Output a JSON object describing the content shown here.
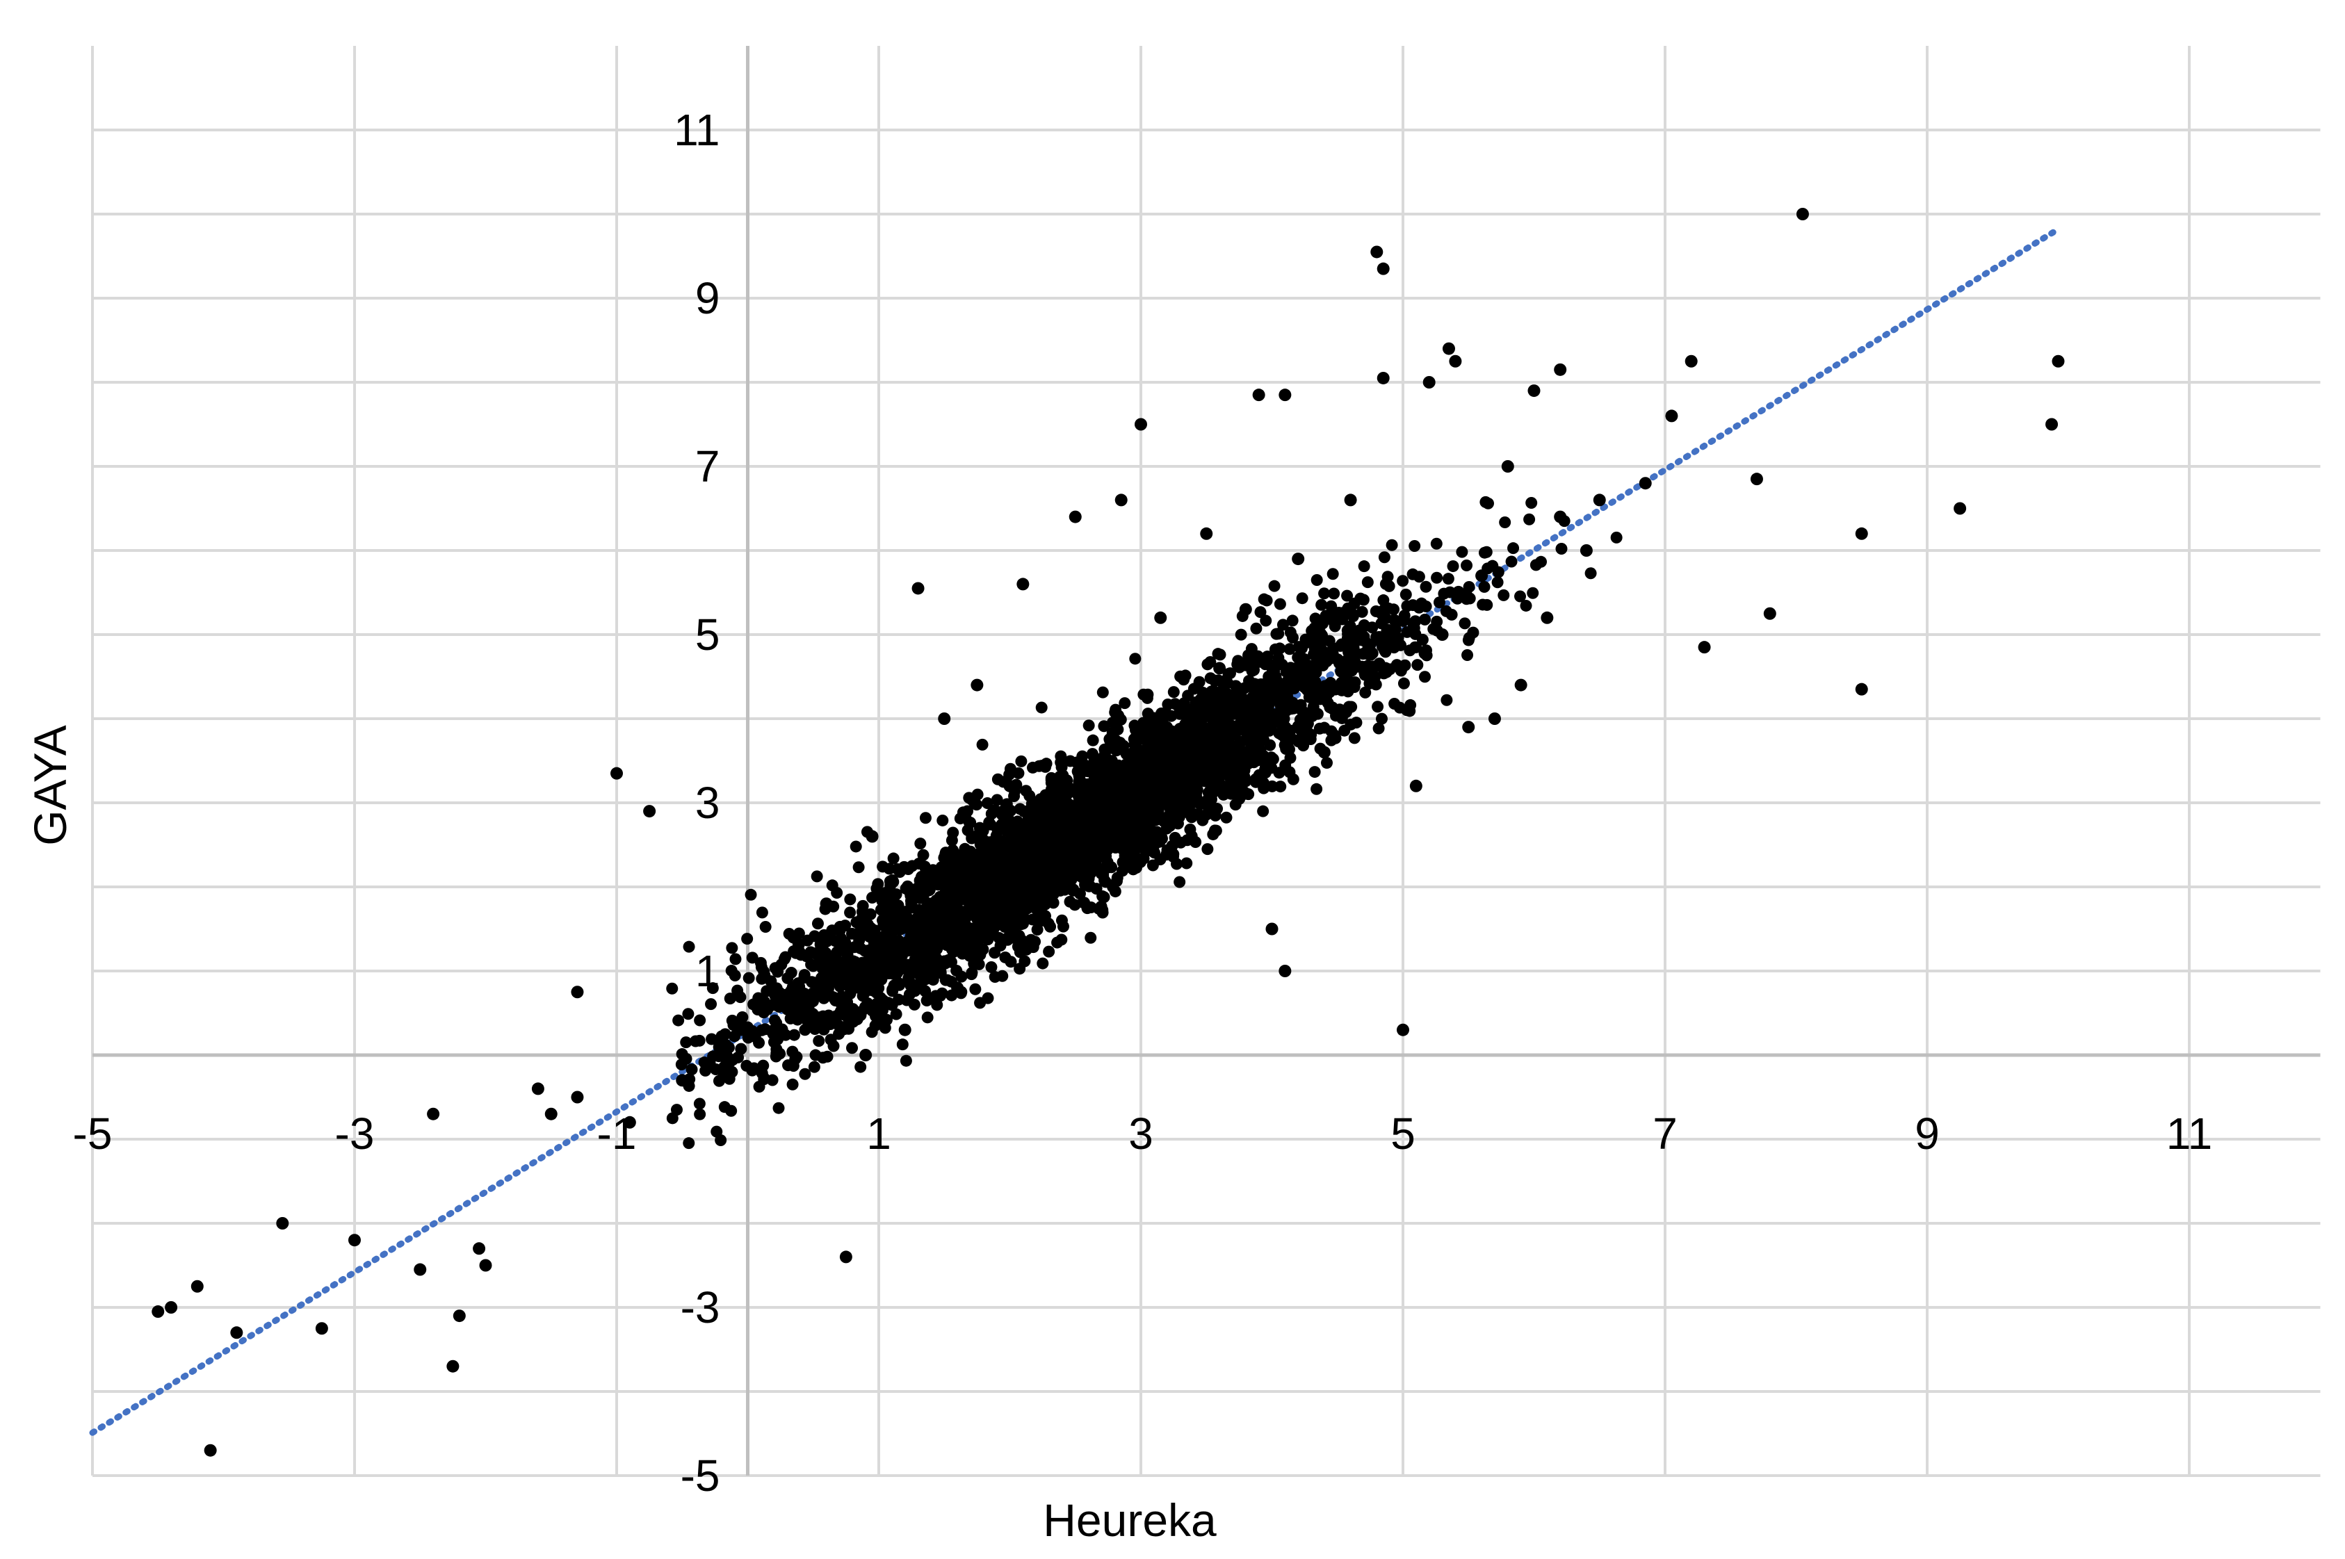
{
  "chart_data": {
    "type": "scatter",
    "title": "",
    "xlabel": "Heureka",
    "ylabel": "GAYA",
    "xlim": [
      -5,
      12
    ],
    "ylim": [
      -5,
      12
    ],
    "x_ticks": [
      -5,
      -3,
      -1,
      1,
      3,
      5,
      7,
      9,
      11
    ],
    "x_tick_labels": [
      "-5",
      "-3",
      "-1",
      "1",
      "3",
      "5",
      "7",
      "9",
      "11"
    ],
    "y_ticks": [
      -5,
      -3,
      1,
      3,
      5,
      7,
      9,
      11
    ],
    "y_tick_labels": [
      "-5",
      "-3",
      "1",
      "3",
      "5",
      "7",
      "9",
      "11"
    ],
    "grid": true,
    "colors": {
      "points": "#000000",
      "trendline": "#4472C4",
      "grid": "#d9d9d9",
      "axis": "#bfbfbf"
    },
    "series": [
      {
        "type": "scatter",
        "x": [
          8.05,
          4.8,
          4.85,
          10.0,
          9.95,
          9.25,
          8.5,
          8.5,
          7.2,
          6.2,
          6.0,
          5.35,
          5.4,
          5.2,
          4.85,
          3.0,
          3.9,
          4.1,
          1.3,
          0.75,
          -1.0,
          -0.75,
          -1.3,
          -2.4,
          -2.5,
          -2.2,
          -2.25,
          -1.6,
          -1.5,
          -1.3,
          -3.55,
          -4.1,
          -4.4,
          -4.5,
          -4.2,
          -3.9,
          -3.25,
          -3.0,
          -2.0,
          -2.05,
          0.65,
          4.1,
          5.0,
          4.0,
          7.8,
          7.7,
          7.3,
          6.85,
          7.05,
          6.5,
          6.2,
          5.8,
          6.4,
          6.1,
          5.6,
          5.3,
          2.1,
          2.5,
          2.85,
          3.5,
          3.15,
          1.75,
          1.5,
          0.95,
          0.6,
          0.35,
          0.2,
          -0.2,
          -0.5,
          -0.9,
          5.9,
          5.7,
          5.5,
          5.1,
          4.4,
          4.6,
          4.2,
          3.8,
          3.6,
          3.3,
          2.2,
          1.9,
          1.6,
          1.2,
          0.9,
          1.1,
          1.8,
          2.6,
          3.1,
          2.0
        ],
        "y": [
          10.0,
          9.55,
          9.35,
          8.25,
          7.5,
          6.5,
          6.2,
          4.35,
          8.25,
          8.15,
          7.9,
          8.4,
          8.25,
          8.0,
          8.05,
          7.5,
          7.85,
          7.85,
          5.55,
          -2.4,
          3.35,
          2.9,
          0.75,
          -0.7,
          -2.55,
          -3.1,
          -3.7,
          -0.4,
          -0.7,
          -0.5,
          -2.0,
          -4.7,
          -3.0,
          -3.05,
          -2.75,
          -3.3,
          -3.25,
          -2.2,
          -2.5,
          -2.3,
          1.0,
          1.0,
          0.3,
          1.5,
          5.25,
          6.85,
          4.85,
          6.8,
          7.6,
          6.6,
          6.4,
          7.0,
          6.0,
          5.2,
          5.7,
          5.0,
          5.6,
          6.4,
          6.6,
          6.2,
          5.2,
          4.4,
          4.0,
          2.6,
          1.8,
          1.4,
          0.6,
          0.2,
          -0.3,
          -0.8,
          4.4,
          4.0,
          3.9,
          3.2,
          3.6,
          6.6,
          5.9,
          5.3,
          4.6,
          4.1,
          2.4,
          1.6,
          0.8,
          0.3,
          0.0,
          0.6,
          1.4,
          2.1,
          2.5,
          3.2
        ]
      },
      {
        "type": "cloud",
        "n": 3500,
        "x_mean": 2.5,
        "x_sd": 1.25,
        "slope": 0.954,
        "intercept": 0.28,
        "residual_sd": 0.45
      },
      {
        "type": "trendline",
        "style": "dotted",
        "slope": 0.954,
        "intercept": 0.28,
        "x_range": [
          -5,
          10
        ]
      }
    ]
  }
}
